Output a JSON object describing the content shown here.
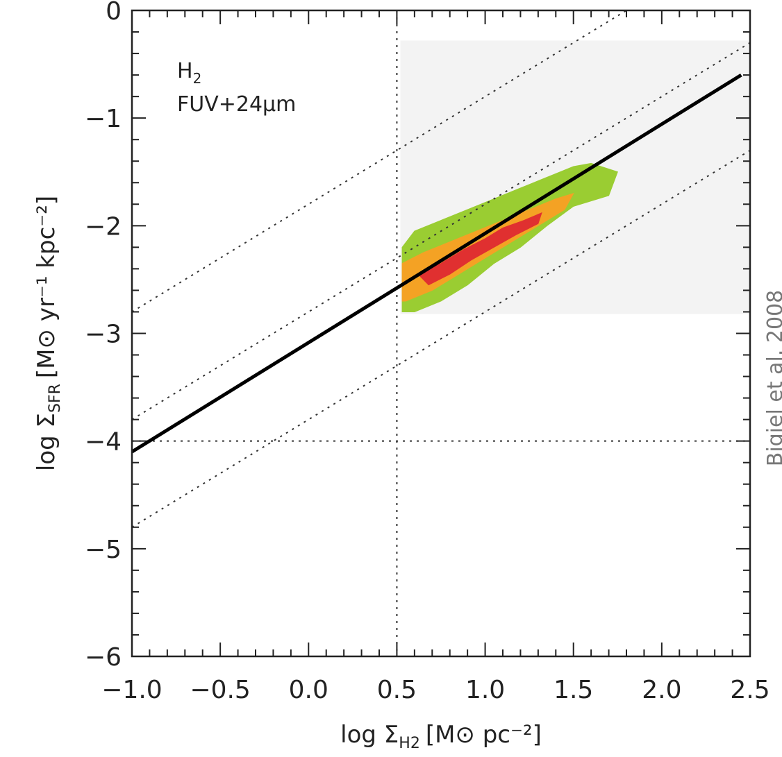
{
  "chart_data": {
    "type": "scatter",
    "x_ticks": [
      "−1.0",
      "−0.5",
      "0.0",
      "0.5",
      "1.0",
      "1.5",
      "2.0",
      "2.5"
    ],
    "y_ticks": [
      "0",
      "−1",
      "−2",
      "−3",
      "−4",
      "−5",
      "−6"
    ],
    "xlim": [
      -1.0,
      2.5
    ],
    "ylim": [
      -6,
      0
    ],
    "xlabel": {
      "prefix": "log Σ",
      "sub": "H2",
      "unit": "[M⊙ pc⁻²]"
    },
    "ylabel": {
      "prefix": "log Σ",
      "sub": "SFR",
      "unit": "[M⊙ yr⁻¹ kpc⁻²]"
    },
    "annotation": {
      "line1_main": "H",
      "line1_sub": "2",
      "line2": "FUV+24μm"
    },
    "side_text": "Bigiel et al. 2008",
    "fit_line": {
      "x": [
        -1.0,
        2.45
      ],
      "y": [
        -4.1,
        -0.6
      ]
    },
    "dotted_lines": [
      {
        "x": [
          -1.0,
          2.5
        ],
        "y": [
          -2.8,
          0.7
        ]
      },
      {
        "x": [
          -1.0,
          2.5
        ],
        "y": [
          -3.8,
          -0.3
        ]
      },
      {
        "x": [
          -1.0,
          2.5
        ],
        "y": [
          -4.8,
          -1.3
        ]
      }
    ],
    "vline_x": 0.5,
    "hline_y": -4,
    "data_region": {
      "x": [
        0.52,
        2.5
      ],
      "y": [
        -2.82,
        -0.28
      ]
    },
    "density_contours": [
      {
        "level": "low",
        "color": "#9acd32",
        "points": [
          [
            0.53,
            -2.2
          ],
          [
            0.6,
            -2.05
          ],
          [
            0.75,
            -1.95
          ],
          [
            0.9,
            -1.85
          ],
          [
            1.05,
            -1.75
          ],
          [
            1.2,
            -1.65
          ],
          [
            1.35,
            -1.55
          ],
          [
            1.5,
            -1.45
          ],
          [
            1.6,
            -1.42
          ],
          [
            1.75,
            -1.5
          ],
          [
            1.7,
            -1.72
          ],
          [
            1.5,
            -1.82
          ],
          [
            1.35,
            -2.0
          ],
          [
            1.2,
            -2.2
          ],
          [
            1.05,
            -2.35
          ],
          [
            0.9,
            -2.55
          ],
          [
            0.75,
            -2.7
          ],
          [
            0.6,
            -2.8
          ],
          [
            0.53,
            -2.8
          ]
        ]
      },
      {
        "level": "mid",
        "color": "#f4a224",
        "points": [
          [
            0.53,
            -2.35
          ],
          [
            0.65,
            -2.25
          ],
          [
            0.8,
            -2.15
          ],
          [
            0.95,
            -2.05
          ],
          [
            1.1,
            -1.95
          ],
          [
            1.25,
            -1.85
          ],
          [
            1.4,
            -1.75
          ],
          [
            1.5,
            -1.7
          ],
          [
            1.45,
            -1.85
          ],
          [
            1.3,
            -2.0
          ],
          [
            1.15,
            -2.15
          ],
          [
            1.0,
            -2.3
          ],
          [
            0.85,
            -2.45
          ],
          [
            0.7,
            -2.6
          ],
          [
            0.55,
            -2.7
          ],
          [
            0.53,
            -2.7
          ]
        ]
      },
      {
        "level": "high",
        "color": "#e03030",
        "points": [
          [
            0.62,
            -2.45
          ],
          [
            0.75,
            -2.35
          ],
          [
            0.88,
            -2.22
          ],
          [
            1.0,
            -2.12
          ],
          [
            1.1,
            -2.02
          ],
          [
            1.22,
            -1.95
          ],
          [
            1.32,
            -1.88
          ],
          [
            1.3,
            -1.98
          ],
          [
            1.18,
            -2.08
          ],
          [
            1.05,
            -2.2
          ],
          [
            0.92,
            -2.32
          ],
          [
            0.8,
            -2.45
          ],
          [
            0.68,
            -2.55
          ]
        ]
      }
    ],
    "grid": false
  }
}
